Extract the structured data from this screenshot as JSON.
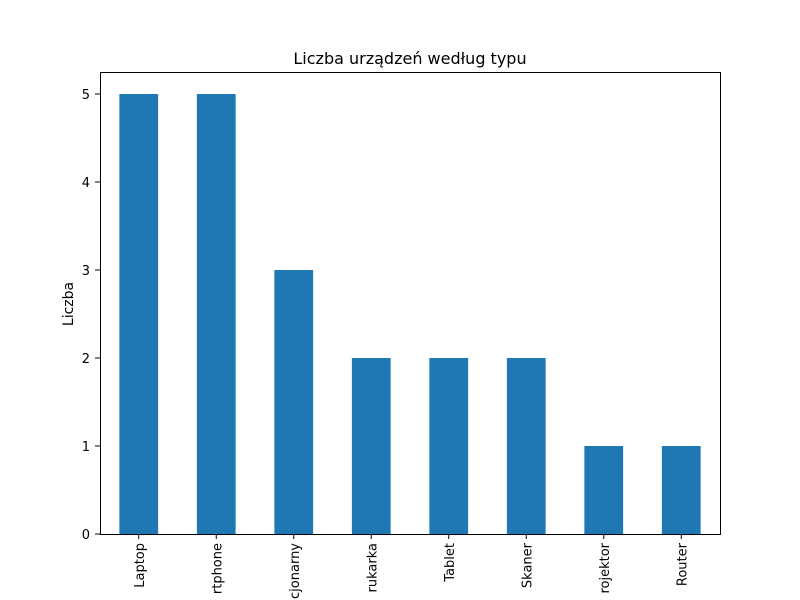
{
  "chart_data": {
    "type": "bar",
    "title": "Liczba urządzeń według typu",
    "xlabel": "",
    "ylabel": "Liczba",
    "categories": [
      "Laptop",
      "Smartphone",
      "Komputer stacjonarny",
      "Drukarka",
      "Tablet",
      "Skaner",
      "Projektor",
      "Router"
    ],
    "visible_tick_labels": [
      "Laptop",
      "rtphone",
      "cjonarny",
      "rukarka",
      "Tablet",
      "Skaner",
      "rojektor",
      "Router"
    ],
    "values": [
      5,
      5,
      3,
      2,
      2,
      2,
      1,
      1
    ],
    "ylim": [
      0,
      5.25
    ],
    "yticks": [
      0,
      1,
      2,
      3,
      4,
      5
    ],
    "grid": false,
    "legend": "none",
    "bar_color": "#1f77b4"
  }
}
